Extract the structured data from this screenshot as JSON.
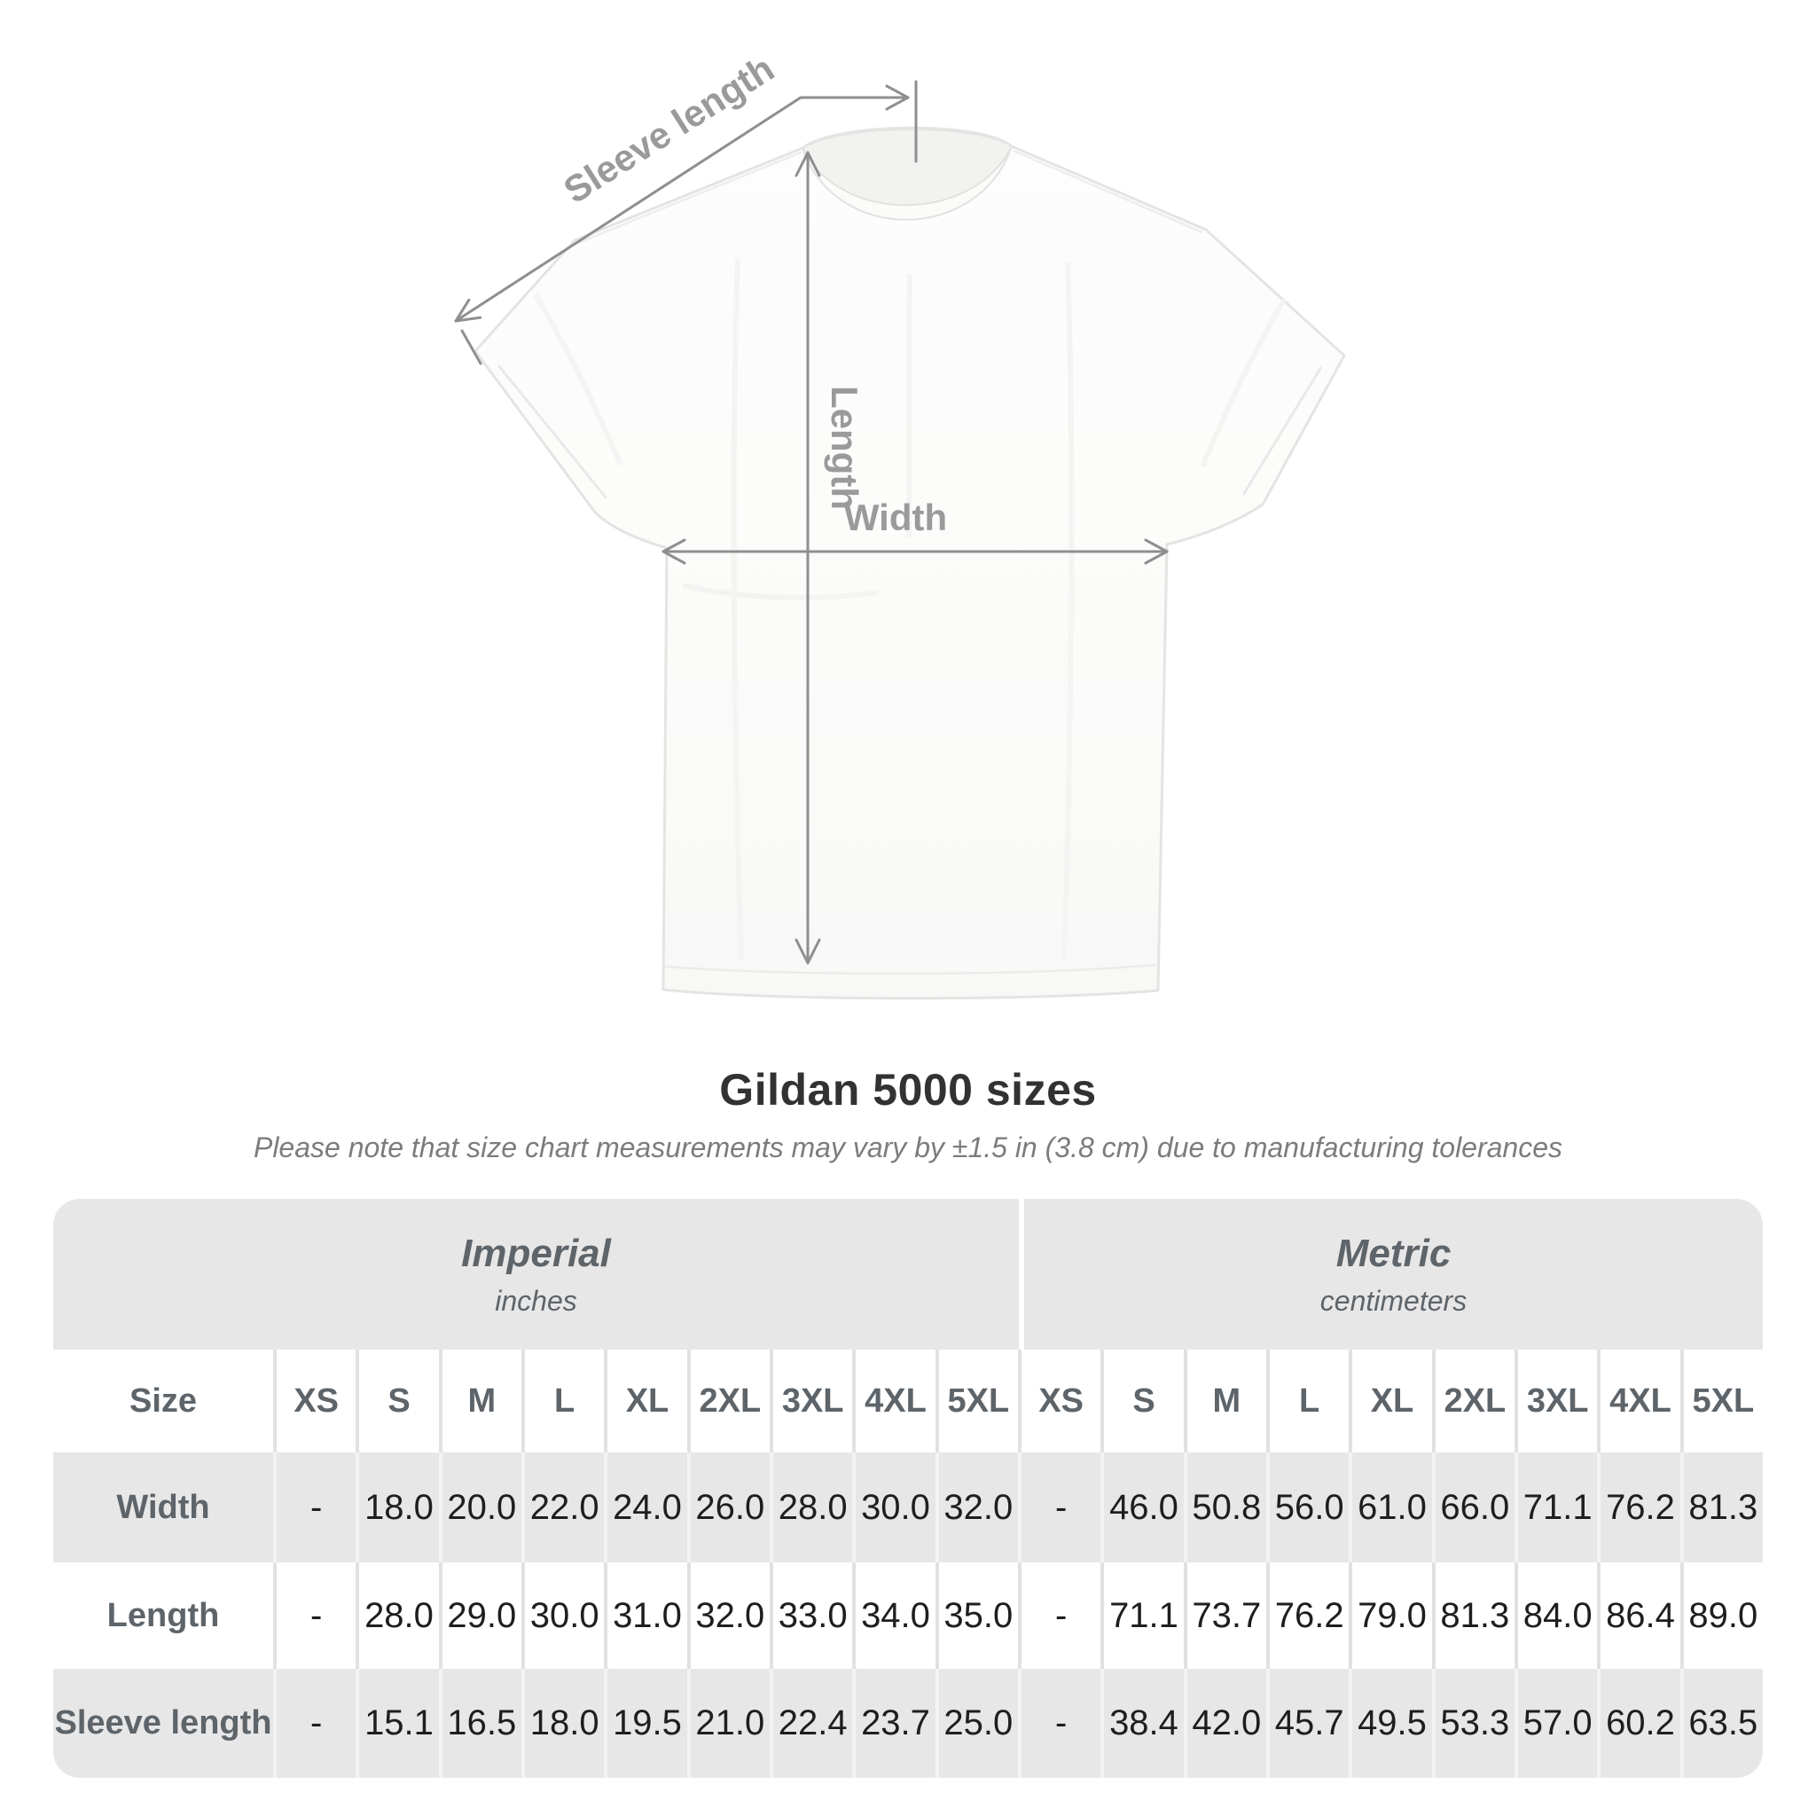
{
  "diagram": {
    "sleeve_length_label": "Sleeve length",
    "length_label": "Length",
    "width_label": "Width"
  },
  "chart_data": {
    "type": "table",
    "title": "Gildan 5000 sizes",
    "subtitle": "Please note that size chart measurements may vary by ±1.5 in (3.8 cm) due to manufacturing tolerances",
    "row_header": "Size",
    "unit_groups": [
      {
        "label": "Imperial",
        "sublabel": "inches"
      },
      {
        "label": "Metric",
        "sublabel": "centimeters"
      }
    ],
    "sizes": [
      "XS",
      "S",
      "M",
      "L",
      "XL",
      "2XL",
      "3XL",
      "4XL",
      "5XL"
    ],
    "rows": [
      {
        "label": "Width",
        "imperial": [
          "-",
          "18.0",
          "20.0",
          "22.0",
          "24.0",
          "26.0",
          "28.0",
          "30.0",
          "32.0"
        ],
        "metric": [
          "-",
          "46.0",
          "50.8",
          "56.0",
          "61.0",
          "66.0",
          "71.1",
          "76.2",
          "81.3"
        ]
      },
      {
        "label": "Length",
        "imperial": [
          "-",
          "28.0",
          "29.0",
          "30.0",
          "31.0",
          "32.0",
          "33.0",
          "34.0",
          "35.0"
        ],
        "metric": [
          "-",
          "71.1",
          "73.7",
          "76.2",
          "79.0",
          "81.3",
          "84.0",
          "86.4",
          "89.0"
        ]
      },
      {
        "label": "Sleeve length",
        "imperial": [
          "-",
          "15.1",
          "16.5",
          "18.0",
          "19.5",
          "21.0",
          "22.4",
          "23.7",
          "25.0"
        ],
        "metric": [
          "-",
          "38.4",
          "42.0",
          "45.7",
          "49.5",
          "53.3",
          "57.0",
          "60.2",
          "63.5"
        ]
      }
    ]
  },
  "colors": {
    "band_gray": "#e8e7e7",
    "header_text": "#5d646a",
    "data_text": "#1d1e20",
    "annotation_gray": "#9a9a9a",
    "title_text": "#323232",
    "subtitle_text": "#7c7c7c"
  }
}
